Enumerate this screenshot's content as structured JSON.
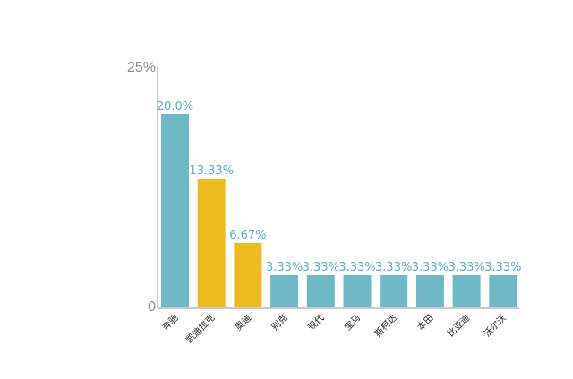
{
  "chart_data": {
    "type": "bar",
    "title": "",
    "xlabel": "",
    "ylabel": "",
    "ylim": [
      0,
      25
    ],
    "y_ticks": [
      "25%",
      "0"
    ],
    "grid": false,
    "legend": "none",
    "categories": [
      "奔驰",
      "凯迪拉克",
      "奥迪",
      "别克",
      "现代",
      "宝马",
      "斯柯达",
      "本田",
      "比亚迪",
      "沃尔沃"
    ],
    "values": [
      20.0,
      13.33,
      6.67,
      3.33,
      3.33,
      3.33,
      3.33,
      3.33,
      3.33,
      3.33
    ],
    "data_labels": [
      "20.0%",
      "13.33%",
      "6.67%",
      "3.33%",
      "3.33%",
      "3.33%",
      "3.33%",
      "3.33%",
      "3.33%",
      "3.33%"
    ],
    "bar_colors": [
      "#6fb9c6",
      "#edbb1e",
      "#edbb1e",
      "#6fb9c6",
      "#6fb9c6",
      "#6fb9c6",
      "#6fb9c6",
      "#6fb9c6",
      "#6fb9c6",
      "#6fb9c6"
    ],
    "label_color": "#5aaebd",
    "axis_color": "#b8b8b8"
  }
}
